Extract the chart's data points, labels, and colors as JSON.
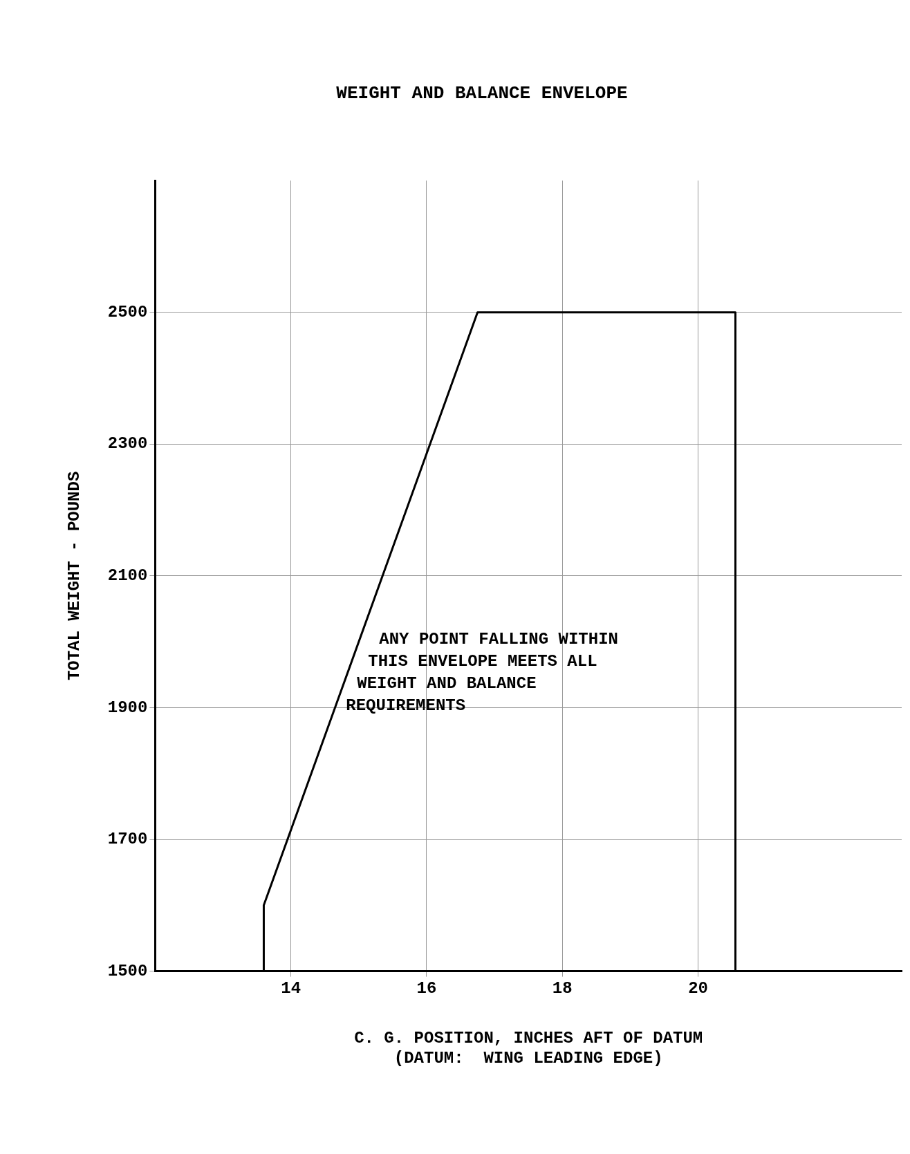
{
  "chart_data": {
    "type": "line",
    "title": "WEIGHT AND BALANCE ENVELOPE",
    "xlabel": "C. G. POSITION, INCHES AFT OF DATUM\n(DATUM:  WING LEADING EDGE)",
    "ylabel": "TOTAL WEIGHT - POUNDS",
    "xlim": [
      12,
      23
    ],
    "xticks": [
      14,
      16,
      18,
      20
    ],
    "ylim": [
      1500,
      2700
    ],
    "yticks": [
      1500,
      1700,
      1900,
      2100,
      2300,
      2500
    ],
    "grid": true,
    "marker": "none",
    "line_style": "solid",
    "legend": false,
    "series": [
      {
        "color": "#000000",
        "x": [
          13.6,
          13.6,
          16.75,
          20.55,
          20.55
        ],
        "values": [
          1500,
          1600,
          2500,
          2500,
          1500
        ]
      }
    ],
    "annotations": [
      "ANY POINT FALLING WITHIN\nTHIS ENVELOPE MEETS ALL\nWEIGHT AND BALANCE\nREQUIREMENTS"
    ]
  }
}
